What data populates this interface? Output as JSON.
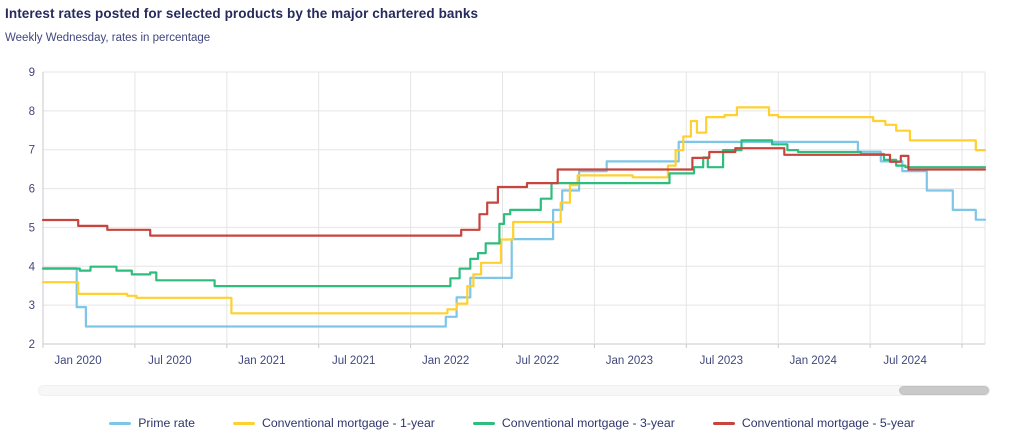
{
  "header": {
    "title": "Interest rates posted for selected products by the major chartered banks",
    "subtitle": "Weekly Wednesday, rates in percentage"
  },
  "chart_data": {
    "type": "line",
    "title": "Interest rates posted for selected products by the major chartered banks",
    "subtitle": "Weekly Wednesday, rates in percentage",
    "x_unit": "months since Jan 2020",
    "x_min": 0,
    "x_max": 61.5,
    "y_axis": {
      "min": 2,
      "max": 9,
      "step": 1
    },
    "grid": true,
    "legend_position": "bottom",
    "x_ticks": [
      {
        "m": 0,
        "label": "Jan 2020"
      },
      {
        "m": 6,
        "label": "Jul 2020"
      },
      {
        "m": 12,
        "label": "Jan 2021"
      },
      {
        "m": 18,
        "label": "Jul 2021"
      },
      {
        "m": 24,
        "label": "Jan 2022"
      },
      {
        "m": 30,
        "label": "Jul 2022"
      },
      {
        "m": 36,
        "label": "Jan 2023"
      },
      {
        "m": 42,
        "label": "Jul 2023"
      },
      {
        "m": 48,
        "label": "Jan 2024"
      },
      {
        "m": 54,
        "label": "Jul 2024"
      },
      {
        "m": 60,
        "label": ""
      }
    ],
    "y_tick_labels": [
      "2",
      "3",
      "4",
      "5",
      "6",
      "7",
      "8",
      "9"
    ],
    "series": [
      {
        "name": "Prime rate",
        "color": "#7dc6e8",
        "points": [
          [
            0,
            3.95
          ],
          [
            2.2,
            2.95
          ],
          [
            2.8,
            2.45
          ],
          [
            26.3,
            2.7
          ],
          [
            27.0,
            3.2
          ],
          [
            27.9,
            3.7
          ],
          [
            30.6,
            4.7
          ],
          [
            33.3,
            5.45
          ],
          [
            33.9,
            5.95
          ],
          [
            35.0,
            6.45
          ],
          [
            36.8,
            6.7
          ],
          [
            41.5,
            7.2
          ],
          [
            53.2,
            6.95
          ],
          [
            54.7,
            6.7
          ],
          [
            56.1,
            6.45
          ],
          [
            57.7,
            5.95
          ],
          [
            59.4,
            5.45
          ],
          [
            60.9,
            5.2
          ]
        ]
      },
      {
        "name": "Conventional mortgage - 1-year",
        "color": "#ffd02e",
        "points": [
          [
            0,
            3.59
          ],
          [
            2.3,
            3.29
          ],
          [
            5.5,
            3.24
          ],
          [
            6.1,
            3.19
          ],
          [
            12.3,
            2.79
          ],
          [
            26.4,
            2.89
          ],
          [
            27.0,
            3.04
          ],
          [
            27.7,
            3.49
          ],
          [
            28.1,
            3.79
          ],
          [
            28.6,
            4.09
          ],
          [
            29.9,
            4.69
          ],
          [
            30.7,
            5.14
          ],
          [
            33.8,
            5.64
          ],
          [
            34.4,
            6.09
          ],
          [
            34.9,
            6.34
          ],
          [
            38.5,
            6.29
          ],
          [
            40.8,
            6.59
          ],
          [
            41.3,
            6.99
          ],
          [
            41.8,
            7.34
          ],
          [
            42.3,
            7.74
          ],
          [
            42.7,
            7.44
          ],
          [
            43.3,
            7.84
          ],
          [
            44.5,
            7.89
          ],
          [
            45.3,
            8.09
          ],
          [
            47.4,
            7.89
          ],
          [
            48.0,
            7.84
          ],
          [
            54.2,
            7.74
          ],
          [
            55.0,
            7.64
          ],
          [
            55.7,
            7.49
          ],
          [
            56.6,
            7.24
          ],
          [
            60.9,
            6.99
          ]
        ]
      },
      {
        "name": "Conventional mortgage - 3-year",
        "color": "#2ebd7d",
        "points": [
          [
            0,
            3.94
          ],
          [
            2.4,
            3.89
          ],
          [
            3.1,
            3.99
          ],
          [
            4.8,
            3.89
          ],
          [
            5.8,
            3.79
          ],
          [
            7.0,
            3.84
          ],
          [
            7.4,
            3.64
          ],
          [
            11.2,
            3.49
          ],
          [
            26.6,
            3.69
          ],
          [
            27.2,
            3.94
          ],
          [
            27.9,
            4.19
          ],
          [
            28.4,
            4.34
          ],
          [
            28.9,
            4.59
          ],
          [
            29.8,
            5.09
          ],
          [
            30.1,
            5.34
          ],
          [
            30.5,
            5.45
          ],
          [
            32.5,
            5.74
          ],
          [
            33.2,
            6.14
          ],
          [
            40.9,
            6.39
          ],
          [
            42.5,
            6.55
          ],
          [
            43.1,
            6.8
          ],
          [
            43.4,
            6.55
          ],
          [
            44.4,
            6.99
          ],
          [
            45.6,
            7.24
          ],
          [
            47.6,
            7.14
          ],
          [
            48.6,
            6.99
          ],
          [
            49.3,
            6.94
          ],
          [
            53.4,
            6.89
          ],
          [
            54.9,
            6.74
          ],
          [
            55.7,
            6.59
          ],
          [
            56.3,
            6.55
          ]
        ]
      },
      {
        "name": "Conventional mortgage - 5-year",
        "color": "#c8453f",
        "points": [
          [
            0,
            5.19
          ],
          [
            2.3,
            5.04
          ],
          [
            4.2,
            4.94
          ],
          [
            7.0,
            4.79
          ],
          [
            27.3,
            4.94
          ],
          [
            28.5,
            5.34
          ],
          [
            29.0,
            5.64
          ],
          [
            29.7,
            6.04
          ],
          [
            31.6,
            6.14
          ],
          [
            33.6,
            6.49
          ],
          [
            42.4,
            6.79
          ],
          [
            43.5,
            6.94
          ],
          [
            45.2,
            7.04
          ],
          [
            48.4,
            6.87
          ],
          [
            55.3,
            6.69
          ],
          [
            56.0,
            6.84
          ],
          [
            56.5,
            6.49
          ]
        ]
      }
    ]
  },
  "colors": {
    "title_text": "#262a5c",
    "subtitle_text": "#41477d",
    "axis_label_text": "#41477d",
    "legend_text": "#2f356b",
    "gridline": "#e5e5e5",
    "axis_line": "#c9c9ce",
    "scrollbar_track": "#f7f7f7",
    "scrollbar_thumb": "#c9c9c9"
  }
}
